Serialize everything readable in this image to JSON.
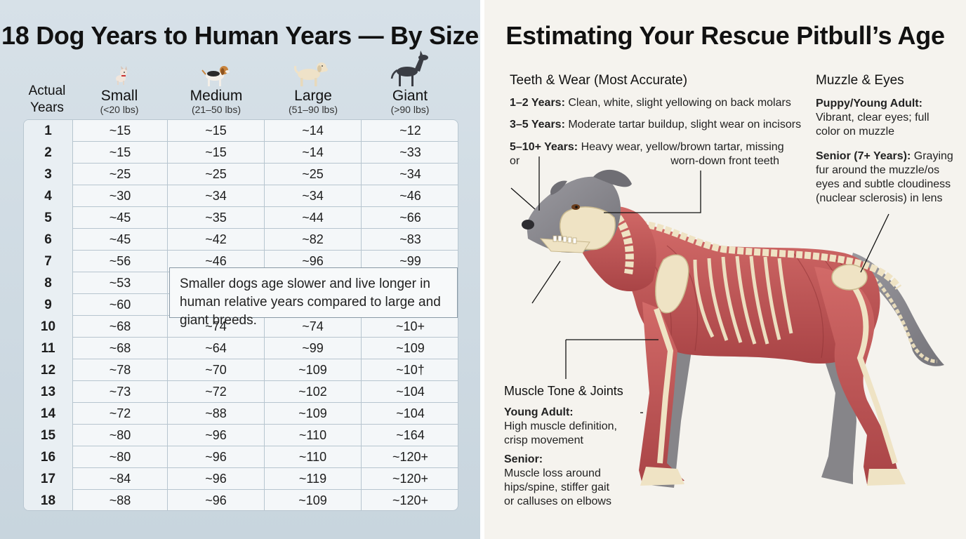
{
  "left": {
    "title": "18 Dog Years to Human Years — By Size",
    "header": {
      "actual": "Actual Years",
      "small_label": "Small",
      "small_range": "(<20 lbs)",
      "medium_label": "Medium",
      "medium_range": "(21–50 lbs)",
      "large_label": "Large",
      "large_range": "(51–90 lbs)",
      "giant_label": "Giant",
      "giant_range": "(>90 lbs)"
    },
    "rows": [
      [
        "1",
        "~15",
        "~15",
        "~14",
        "~12"
      ],
      [
        "2",
        "~15",
        "~15",
        "~14",
        "~33"
      ],
      [
        "3",
        "~25",
        "~25",
        "~25",
        "~34"
      ],
      [
        "4",
        "~30",
        "~34",
        "~34",
        "~46"
      ],
      [
        "5",
        "~45",
        "~35",
        "~44",
        "~66"
      ],
      [
        "6",
        "~45",
        "~42",
        "~82",
        "~83"
      ],
      [
        "7",
        "~56",
        "~46",
        "~96",
        "~99"
      ],
      [
        "8",
        "~53",
        "",
        "",
        ""
      ],
      [
        "9",
        "~60",
        "",
        "",
        ""
      ],
      [
        "10",
        "~68",
        "~74",
        "~74",
        "~10+"
      ],
      [
        "11",
        "~68",
        "~64",
        "~99",
        "~109"
      ],
      [
        "12",
        "~78",
        "~70",
        "~109",
        "~10†"
      ],
      [
        "13",
        "~73",
        "~72",
        "~102",
        "~104"
      ],
      [
        "14",
        "~72",
        "~88",
        "~109",
        "~104"
      ],
      [
        "15",
        "~80",
        "~96",
        "~110",
        "~164"
      ],
      [
        "16",
        "~80",
        "~96",
        "~110",
        "~120+"
      ],
      [
        "17",
        "~84",
        "~96",
        "~119",
        "~120+"
      ],
      [
        "18",
        "~88",
        "~96",
        "~109",
        "~120+"
      ]
    ],
    "note": "Smaller dogs age slower and live longer in human relative years compared to large and giant breeds."
  },
  "right": {
    "title": "Estimating Your Rescue Pitbull’s Age",
    "teeth": {
      "heading": "Teeth & Wear (Most Accurate)",
      "l1_label": "1–2 Years:",
      "l1_text": "Clean, white, slight yellowing on back molars",
      "l2_label": "3–5 Years:",
      "l2_text": "Moderate tartar buildup, slight wear on incisors",
      "l3_label": "5–10+ Years:",
      "l3_text": "Heavy wear, yellow/brown tartar, missing or",
      "l3_text2": "worn-down front teeth"
    },
    "eyes": {
      "heading": "Muzzle & Eyes",
      "puppy_label": "Puppy/Young Adult:",
      "puppy_text": "Vibrant, clear eyes; full color on muzzle",
      "senior_label": "Senior (7+ Years):",
      "senior_text": "Graying fur around the muzzle/os eyes and subtle cloudiness (nuclear sclerosis) in lens"
    },
    "muscle": {
      "heading": "Muscle Tone & Joints",
      "young_label": "Young Adult:",
      "young_text": "High muscle definition, crisp movement",
      "senior_label": "Senior:",
      "senior_text": "Muscle loss around hips/spine, stiffer gait or calluses on elbows"
    }
  },
  "colors": {
    "left_bg": "#d3dee6",
    "table_bg": "#f4f7f9",
    "right_bg": "#f5f3ee",
    "muscle": "#c0575a",
    "bone": "#efe3c4",
    "fur": "#8f8e93"
  }
}
